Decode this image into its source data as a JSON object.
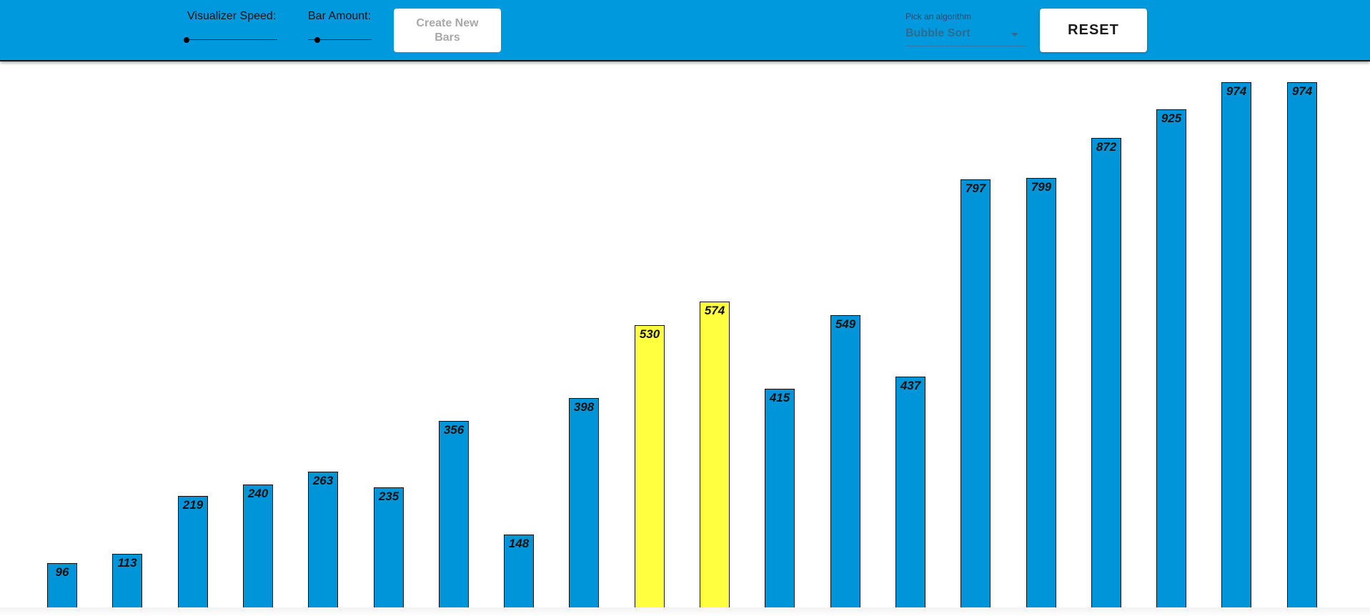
{
  "header": {
    "speed_label": "Visualizer Speed:",
    "speed_value": 0,
    "amount_label": "Bar Amount:",
    "amount_value": 0.15,
    "create_button_label": "Create New Bars",
    "algorithm_label": "Pick an algorithm",
    "algorithm_value": "Bubble Sort",
    "reset_button_label": "RESET"
  },
  "colors": {
    "appbar": "#0099dd",
    "bar_default": "#0095d9",
    "bar_compare": "#ffff3f"
  },
  "chart_data": {
    "type": "bar",
    "values": [
      96,
      113,
      219,
      240,
      263,
      235,
      356,
      148,
      398,
      530,
      574,
      415,
      549,
      437,
      797,
      799,
      872,
      925,
      974,
      974
    ],
    "highlighted_indices": [
      9,
      10
    ],
    "ylim": [
      0,
      1000
    ],
    "grid": false
  }
}
